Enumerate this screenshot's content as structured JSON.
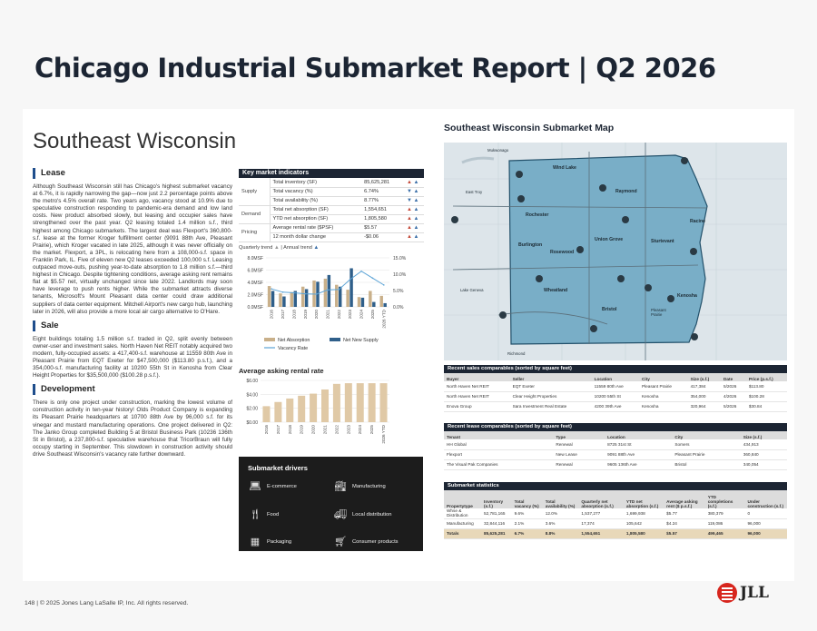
{
  "title": "Chicago Industrial Submarket Report | Q2 2026",
  "section_title": "Southeast Wisconsin",
  "lease": {
    "heading": "Lease",
    "text": "Although Southeast Wisconsin still has Chicago's highest submarket vacancy at 6.7%, it is rapidly narrowing the gap—now just 2.2 percentage points above the metro's 4.5% overall rate. Two years ago, vacancy stood at 10.9% due to speculative construction responding to pandemic-era demand and low land costs. New product absorbed slowly, but leasing and occupier sales have strengthened over the past year. Q2 leasing totaled 1.4 million s.f., third highest among Chicago submarkets. The largest deal was Flexport's 360,800-s.f. lease at the former Kroger fulfillment center (9091 88th Ave, Pleasant Prairie), which Kroger vacated in late 2025, although it was never officially on the market. Flexport, a 3PL, is relocating here from a 108,000-s.f. space in Franklin Park, IL. Five of eleven new Q2 leases exceeded 100,000 s.f. Leasing outpaced move-outs, pushing year-to-date absorption to 1.8 million s.f.—third highest in Chicago. Despite tightening conditions, average asking rent remains flat at $5.57 net, virtually unchanged since late 2022. Landlords may soon have leverage to push rents higher. While the submarket attracts diverse tenants, Microsoft's Mount Pleasant data center could draw additional suppliers of data center equipment. Mitchell Airport's new cargo hub, launching later in 2026, will also provide a more local air cargo alternative to O'Hare."
  },
  "sale": {
    "heading": "Sale",
    "text": "Eight buildings totaling 1.5 million s.f. traded in Q2, split evenly between owner-user and investment sales. North Haven Net REIT notably acquired two modern, fully-occupied assets: a 417,400-s.f. warehouse at 11559 80th Ave in Pleasant Prairie from EQT Exeter for $47,500,000 ($113.80 p.s.f.), and a 354,000-s.f. manufacturing facility at 10200 55th St in Kenosha from Clear Height Properties for $35,500,000 ($100.28 p.s.f.)."
  },
  "development": {
    "heading": "Development",
    "text": "There is only one project under construction, marking the lowest volume of construction activity in ten-year history! Olds Product Company is expanding its Pleasant Prairie headquarters at 10700 88th Ave by 96,000 s.f. for its vinegar and mustard manufacturing operations. One project delivered in Q2: The Janko Group completed Building 5 at Bristol Business Park (10236 136th St in Bristol), a 237,800-s.f. speculative warehouse that TricorBraun will fully occupy starting in September. This slowdown in construction activity should drive Southeast Wisconsin's vacancy rate further downward."
  },
  "kmi": {
    "title": "Key market indicators",
    "groups": [
      {
        "name": "Supply",
        "rows": [
          {
            "label": "Total inventory (SF)",
            "value": "85,625,281",
            "q": "up-red",
            "a": "up-blue"
          },
          {
            "label": "Total vacancy (%)",
            "value": "6.74%",
            "q": "down-blue",
            "a": "up-blue"
          },
          {
            "label": "Total availability (%)",
            "value": "8.77%",
            "q": "down-blue",
            "a": "up-blue"
          }
        ]
      },
      {
        "name": "Demand",
        "rows": [
          {
            "label": "Total net absorption (SF)",
            "value": "1,554,651",
            "q": "up-red",
            "a": "up-blue"
          },
          {
            "label": "YTD net absorption (SF)",
            "value": "1,805,580",
            "q": "up-red",
            "a": "up-blue"
          }
        ]
      },
      {
        "name": "Pricing",
        "rows": [
          {
            "label": "Average rental rate ($PSF)",
            "value": "$5.57",
            "q": "up-red",
            "a": "up-blue"
          },
          {
            "label": "12 month dollar change",
            "value": "-$0.06",
            "q": "up-red",
            "a": "up-blue"
          }
        ]
      }
    ],
    "legend_q": "Quarterly trend",
    "legend_a": "Annual trend"
  },
  "chart_data": [
    {
      "type": "bar",
      "categories": [
        "2016",
        "2017",
        "2018",
        "2019",
        "2020",
        "2021",
        "2022",
        "2023",
        "2024",
        "2025",
        "2026 YTD"
      ],
      "series": [
        {
          "name": "Net Absorption",
          "values": [
            3.4,
            2.2,
            2.4,
            3.3,
            4.3,
            4.6,
            3.6,
            2.8,
            1.6,
            2.6,
            1.8
          ]
        },
        {
          "name": "Net New Supply",
          "values": [
            2.6,
            1.7,
            2.6,
            2.9,
            4.1,
            5.2,
            3.3,
            6.3,
            1.5,
            0.8,
            0.6
          ]
        },
        {
          "name": "Vacancy Rate",
          "values": [
            5.5,
            4.5,
            4.3,
            4.0,
            3.9,
            5.2,
            5.3,
            8.4,
            10.9,
            8.8,
            6.7
          ]
        }
      ],
      "yticks": [
        "0.0MSF",
        "2.0MSF",
        "4.0MSF",
        "6.0MSF",
        "8.0MSF"
      ],
      "y2ticks": [
        "0.0%",
        "5.0%",
        "10.0%",
        "15.0%"
      ],
      "ylim": [
        0,
        8
      ],
      "y2lim": [
        0,
        15
      ]
    },
    {
      "type": "bar",
      "title": "Average asking rental rate",
      "categories": [
        "2016",
        "2017",
        "2018",
        "2019",
        "2020",
        "2021",
        "2022",
        "2023",
        "2024",
        "2025",
        "2026 YTD"
      ],
      "values": [
        2.3,
        2.9,
        3.4,
        3.8,
        4.1,
        4.7,
        5.5,
        5.6,
        5.6,
        5.6,
        5.6
      ],
      "yticks": [
        "$0.00",
        "$2.00",
        "$4.00",
        "$6.00"
      ],
      "ylim": [
        0,
        6
      ]
    }
  ],
  "drivers": {
    "title": "Submarket drivers",
    "items": [
      {
        "label": "E-commerce",
        "icon": "laptop-icon"
      },
      {
        "label": "Manufacturing",
        "icon": "factory-icon"
      },
      {
        "label": "Food",
        "icon": "utensils-icon"
      },
      {
        "label": "Local distribution",
        "icon": "truck-icon"
      },
      {
        "label": "Packaging",
        "icon": "boxes-icon"
      },
      {
        "label": "Consumer products",
        "icon": "cart-icon"
      }
    ]
  },
  "map": {
    "title": "Southeast Wisconsin Submarket Map",
    "towns": [
      "Mukwonago",
      "Wind Lake",
      "East Troy",
      "Raymond",
      "Rochester",
      "Racine",
      "Burlington",
      "Rosewood",
      "Union Grove",
      "Sturtevant",
      "Lake Geneva",
      "Wheatland",
      "Kenosha",
      "Bristol",
      "Pleasant Prairie",
      "Richmond"
    ]
  },
  "sales_comps": {
    "title": "Recent sales comparables (sorted by square feet)",
    "headers": [
      "Buyer",
      "Seller",
      "Location",
      "City",
      "Size (s.f.)",
      "Date",
      "Price (p.s.f.)"
    ],
    "rows": [
      [
        "North Haven Net REIT",
        "EQT Exeter",
        "11559 80th Ave",
        "Pleasant Prairie",
        "417,384",
        "5/2026",
        "$113.80"
      ],
      [
        "North Haven Net REIT",
        "Clear Height Properties",
        "10200 55th St",
        "Kenosha",
        "354,000",
        "4/2026",
        "$100.28"
      ],
      [
        "Enova Group",
        "Sara Investment Real Estate",
        "4200 39th Ave",
        "Kenosha",
        "320,964",
        "5/2026",
        "$30.84"
      ]
    ]
  },
  "lease_comps": {
    "title": "Recent lease comparables (sorted by square feet)",
    "headers": [
      "Tenant",
      "Type",
      "Location",
      "City",
      "Size (s.f.)"
    ],
    "rows": [
      [
        "HH Global",
        "Renewal",
        "8725 31st St",
        "Somers",
        "434,913"
      ],
      [
        "Flexport",
        "New Lease",
        "9091 88th Ave",
        "Pleasant Prairie",
        "360,840"
      ],
      [
        "The Visual Pak Companies",
        "Renewal",
        "9605 136th Ave",
        "Bristol",
        "340,054"
      ]
    ]
  },
  "stats": {
    "title": "Submarket statistics",
    "headers": [
      "Propertytype",
      "Inventory (s.f.)",
      "Total vacancy (%)",
      "Total availability (%)",
      "Quarterly net absorption (s.f.)",
      "YTD net absorption (s.f.)",
      "Average asking rent ($ p.s.f.)",
      "YTD completions (s.f.)",
      "Under construction (s.f.)"
    ],
    "rows": [
      [
        "Whse & Distribution",
        "52,781,165",
        "9.6%",
        "12.0%",
        "1,537,277",
        "1,699,938",
        "$5.77",
        "380,379",
        "0"
      ],
      [
        "Manufacturing",
        "32,844,116",
        "2.1%",
        "3.6%",
        "17,374",
        "105,642",
        "$4.24",
        "119,086",
        "96,000"
      ]
    ],
    "total": [
      "Totals",
      "85,625,281",
      "6.7%",
      "8.8%",
      "1,554,651",
      "1,805,580",
      "$5.57",
      "499,465",
      "96,000"
    ]
  },
  "footer": "148 | © 2025 Jones Lang LaSalle IP, Inc. All rights reserved.",
  "logo_text": "JLL",
  "colors": {
    "navy": "#1c2533",
    "absorption": "#c9b08a",
    "supply": "#2f5f8a",
    "vacancy": "#5ba3d6",
    "rent": "#e0c9a6",
    "submarket": "#6fa6bf"
  }
}
